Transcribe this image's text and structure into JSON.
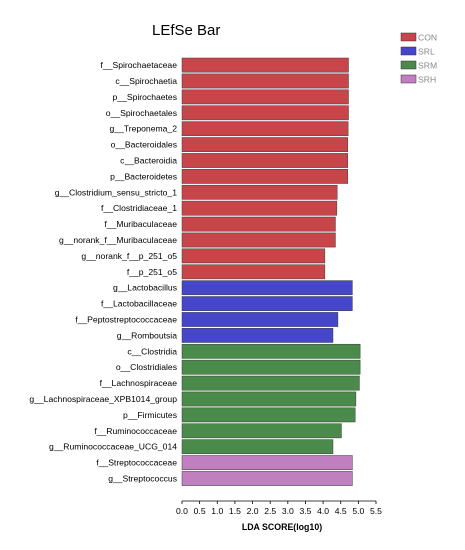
{
  "chart_data": {
    "type": "bar",
    "orientation": "horizontal",
    "title": "LEfSe Bar",
    "xlabel": "LDA SCORE(log10)",
    "ylabel": "",
    "xlim": [
      0,
      5.5
    ],
    "xticks": [
      "0.0",
      "0.5",
      "1.0",
      "1.5",
      "2.0",
      "2.5",
      "3.0",
      "3.5",
      "4.0",
      "4.5",
      "5.0",
      "5.5"
    ],
    "grid": false,
    "legend_position": "top-right",
    "groups": [
      {
        "name": "CON",
        "color": "#c8464a"
      },
      {
        "name": "SRL",
        "color": "#4646c8"
      },
      {
        "name": "SRM",
        "color": "#4a8a4a"
      },
      {
        "name": "SRH",
        "color": "#c080c0"
      }
    ],
    "bars": [
      {
        "label": "f__Spirochaetaceae",
        "value": 4.72,
        "group": "CON"
      },
      {
        "label": "c__Spirochaetia",
        "value": 4.72,
        "group": "CON"
      },
      {
        "label": "p__Spirochaetes",
        "value": 4.72,
        "group": "CON"
      },
      {
        "label": "o__Spirochaetales",
        "value": 4.72,
        "group": "CON"
      },
      {
        "label": "g__Treponema_2",
        "value": 4.71,
        "group": "CON"
      },
      {
        "label": "o__Bacteroidales",
        "value": 4.7,
        "group": "CON"
      },
      {
        "label": "c__Bacteroidia",
        "value": 4.7,
        "group": "CON"
      },
      {
        "label": "p__Bacteroidetes",
        "value": 4.7,
        "group": "CON"
      },
      {
        "label": "g__Clostridium_sensu_stricto_1",
        "value": 4.4,
        "group": "CON"
      },
      {
        "label": "f__Clostridiaceae_1",
        "value": 4.39,
        "group": "CON"
      },
      {
        "label": "f__Muribaculaceae",
        "value": 4.35,
        "group": "CON"
      },
      {
        "label": "g__norank_f__Muribaculaceae",
        "value": 4.35,
        "group": "CON"
      },
      {
        "label": "g__norank_f__p_251_o5",
        "value": 4.05,
        "group": "CON"
      },
      {
        "label": "f__p_251_o5",
        "value": 4.05,
        "group": "CON"
      },
      {
        "label": "g__Lactobacillus",
        "value": 4.83,
        "group": "SRL"
      },
      {
        "label": "f__Lactobacillaceae",
        "value": 4.83,
        "group": "SRL"
      },
      {
        "label": "f__Peptostreptococcaceae",
        "value": 4.42,
        "group": "SRL"
      },
      {
        "label": "g__Romboutsia",
        "value": 4.28,
        "group": "SRL"
      },
      {
        "label": "c__Clostridia",
        "value": 5.05,
        "group": "SRM"
      },
      {
        "label": "o__Clostridiales",
        "value": 5.05,
        "group": "SRM"
      },
      {
        "label": "f__Lachnospiraceae",
        "value": 5.03,
        "group": "SRM"
      },
      {
        "label": "g__Lachnospiraceae_XPB1014_group",
        "value": 4.93,
        "group": "SRM"
      },
      {
        "label": "p__Firmicutes",
        "value": 4.91,
        "group": "SRM"
      },
      {
        "label": "f__Ruminococcaceae",
        "value": 4.52,
        "group": "SRM"
      },
      {
        "label": "g__Ruminococcaceae_UCG_014",
        "value": 4.28,
        "group": "SRM"
      },
      {
        "label": "f__Streptococcaceae",
        "value": 4.83,
        "group": "SRH"
      },
      {
        "label": "g__Streptococcus",
        "value": 4.83,
        "group": "SRH"
      }
    ]
  }
}
